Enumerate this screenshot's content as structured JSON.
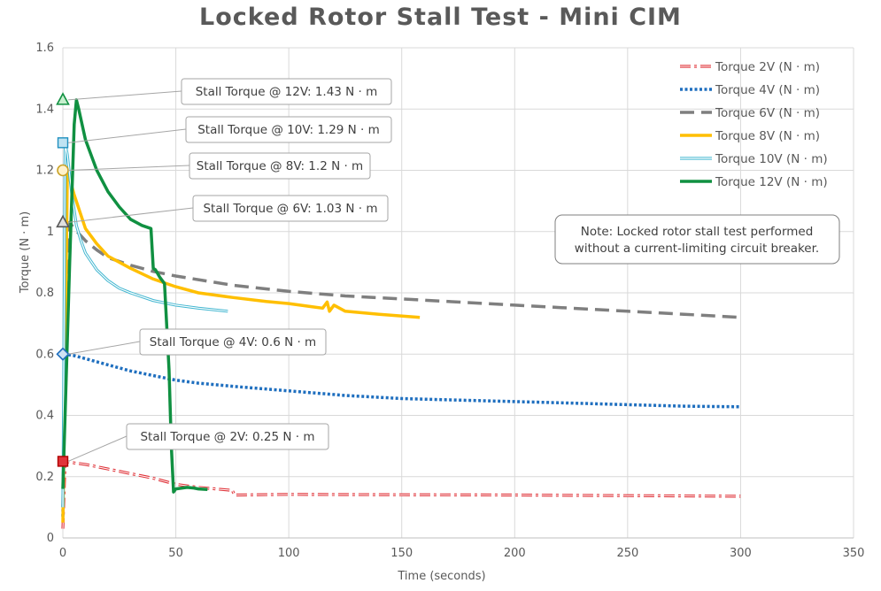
{
  "chart_data": {
    "type": "line",
    "title": "Locked Rotor Stall Test - Mini CIM",
    "xlabel": "Time (seconds)",
    "ylabel": "Torque (N · m)",
    "xlim": [
      0,
      350
    ],
    "ylim": [
      0,
      1.6
    ],
    "xticks": [
      0,
      50,
      100,
      150,
      200,
      250,
      300,
      350
    ],
    "yticks": [
      0,
      0.2,
      0.4,
      0.6,
      0.8,
      1,
      1.2,
      1.4,
      1.6
    ],
    "xtick_labels": [
      "0",
      "50",
      "100",
      "150",
      "200",
      "250",
      "300",
      "350"
    ],
    "ytick_labels": [
      "0",
      "0.2",
      "0.4",
      "0.6",
      "0.8",
      "1",
      "1.2",
      "1.4",
      "1.6"
    ],
    "grid": true,
    "legend_position": "top-right",
    "series": [
      {
        "name": "Torque 2V (N · m)",
        "color": "#e0343a",
        "style": "double-dash",
        "x": [
          0,
          1,
          5,
          10,
          20,
          30,
          40,
          50,
          60,
          75,
          76,
          100,
          150,
          200,
          250,
          300
        ],
        "y": [
          0.03,
          0.25,
          0.245,
          0.24,
          0.225,
          0.21,
          0.195,
          0.175,
          0.165,
          0.155,
          0.14,
          0.142,
          0.141,
          0.14,
          0.138,
          0.136
        ]
      },
      {
        "name": "Torque 4V (N · m)",
        "color": "#1f6fbf",
        "style": "dotted",
        "x": [
          0,
          1,
          5,
          10,
          20,
          30,
          40,
          50,
          60,
          75,
          100,
          125,
          150,
          175,
          200,
          225,
          250,
          275,
          300
        ],
        "y": [
          0.07,
          0.6,
          0.595,
          0.585,
          0.565,
          0.545,
          0.53,
          0.515,
          0.505,
          0.495,
          0.48,
          0.465,
          0.455,
          0.45,
          0.445,
          0.44,
          0.435,
          0.43,
          0.428
        ]
      },
      {
        "name": "Torque 6V (N · m)",
        "color": "#7f7f7f",
        "style": "dashed",
        "x": [
          0,
          1,
          3,
          5,
          10,
          15,
          20,
          30,
          40,
          50,
          75,
          100,
          125,
          150,
          175,
          200,
          225,
          250,
          275,
          300
        ],
        "y": [
          0.1,
          0.6,
          1.03,
          1.01,
          0.97,
          0.94,
          0.915,
          0.89,
          0.87,
          0.855,
          0.825,
          0.805,
          0.79,
          0.78,
          0.77,
          0.76,
          0.75,
          0.74,
          0.73,
          0.72
        ]
      },
      {
        "name": "Torque 8V (N · m)",
        "color": "#ffbf00",
        "style": "solid",
        "x": [
          0,
          1,
          2,
          5,
          10,
          15,
          20,
          30,
          40,
          50,
          60,
          75,
          90,
          100,
          110,
          115,
          117,
          118,
          120,
          125,
          140,
          158
        ],
        "y": [
          0.05,
          0.6,
          1.2,
          1.12,
          1.01,
          0.96,
          0.92,
          0.88,
          0.845,
          0.82,
          0.8,
          0.785,
          0.772,
          0.765,
          0.755,
          0.75,
          0.77,
          0.74,
          0.76,
          0.74,
          0.73,
          0.72
        ]
      },
      {
        "name": "Torque 10V (N · m)",
        "color": "#41b6d0",
        "style": "double",
        "x": [
          0,
          1,
          2,
          4,
          6,
          8,
          10,
          15,
          20,
          25,
          30,
          40,
          50,
          60,
          73
        ],
        "y": [
          0.1,
          1.29,
          1.25,
          1.12,
          1.02,
          0.97,
          0.93,
          0.875,
          0.84,
          0.815,
          0.8,
          0.775,
          0.76,
          0.75,
          0.74
        ]
      },
      {
        "name": "Torque 12V (N · m)",
        "color": "#109041",
        "style": "solid",
        "x": [
          0,
          3,
          5,
          6,
          7,
          10,
          15,
          20,
          25,
          30,
          35,
          39,
          40,
          41,
          43,
          45,
          47,
          48,
          49,
          50,
          55,
          58,
          60,
          64
        ],
        "y": [
          0.16,
          0.9,
          1.35,
          1.43,
          1.4,
          1.3,
          1.2,
          1.13,
          1.08,
          1.04,
          1.02,
          1.01,
          0.88,
          0.875,
          0.85,
          0.83,
          0.55,
          0.3,
          0.15,
          0.16,
          0.165,
          0.163,
          0.16,
          0.158
        ]
      }
    ],
    "markers": [
      {
        "series": 5,
        "x": 0,
        "y": 1.43,
        "shape": "triangle",
        "color": "#109041"
      },
      {
        "series": 4,
        "x": 0,
        "y": 1.29,
        "shape": "square",
        "color": "#41b6d0"
      },
      {
        "series": 3,
        "x": 0,
        "y": 1.2,
        "shape": "circle",
        "color": "#c9a227"
      },
      {
        "series": 2,
        "x": 0,
        "y": 1.03,
        "shape": "triangle",
        "color": "#595959"
      },
      {
        "series": 1,
        "x": 0,
        "y": 0.6,
        "shape": "diamond",
        "color": "#1f6fbf"
      },
      {
        "series": 0,
        "x": 0,
        "y": 0.25,
        "shape": "square",
        "color": "#e0343a"
      }
    ],
    "annotations": [
      {
        "text": "Stall Torque @ 12V: 1.43 N · m",
        "x": 0,
        "y": 1.43
      },
      {
        "text": "Stall Torque @ 10V: 1.29 N · m",
        "x": 0,
        "y": 1.29
      },
      {
        "text": "Stall Torque @ 8V: 1.2 N · m",
        "x": 0,
        "y": 1.2
      },
      {
        "text": "Stall Torque @ 6V: 1.03 N · m",
        "x": 0,
        "y": 1.03
      },
      {
        "text": "Stall Torque @ 4V: 0.6 N · m",
        "x": 0,
        "y": 0.6
      },
      {
        "text": "Stall Torque @ 2V: 0.25 N · m",
        "x": 0,
        "y": 0.25
      }
    ],
    "note": {
      "line1": "Note: Locked rotor stall test performed",
      "line2": "without a current-limiting circuit breaker."
    }
  }
}
